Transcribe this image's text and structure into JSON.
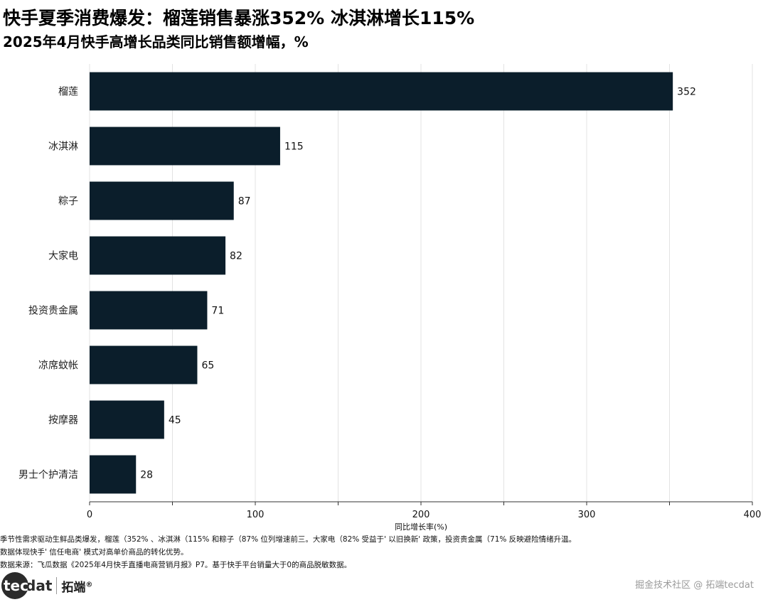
{
  "title": "快手夏季消费爆发：榴莲销售暴涨352% 冰淇淋增长115%",
  "subtitle": "2025年4月快手高增长品类同比销售额增幅，%",
  "chart_data": {
    "type": "bar",
    "orientation": "horizontal",
    "categories": [
      "榴莲",
      "冰淇淋",
      "粽子",
      "大家电",
      "投资贵金属",
      "凉席蚊帐",
      "按摩器",
      "男士个护清洁"
    ],
    "values": [
      352,
      115,
      87,
      82,
      71,
      65,
      45,
      28
    ],
    "data_labels": [
      "352",
      "115",
      "87",
      "82",
      "71",
      "65",
      "45",
      "28"
    ],
    "xlabel": "同比增长率(%)",
    "xlim": [
      0,
      400
    ],
    "x_ticks": [
      "0",
      "100",
      "200",
      "300",
      "400"
    ],
    "bar_color": "#0b1e2b",
    "grid": "vertical"
  },
  "notes": [
    "季节性需求驱动生鲜品类爆发，榴莲（352% 、冰淇淋（115% 和粽子（87% 位列增速前三。大家电（82% 受益于' 以旧换新' 政策，投资贵金属（71% 反映避险情绪升温。",
    "数据体现快手' 信任电商' 模式对高单价商品的转化优势。",
    "数据来源：飞瓜数据《2025年4月快手直播电商营销月报》P7。基于快手平台销量大于0的商品脱敏数据。"
  ],
  "brand": {
    "logo_badge": "tec",
    "logo_rest": "dat",
    "logo_cn": "拓端",
    "logo_mark": "®"
  },
  "watermark": "掘金技术社区 @ 拓端tecdat"
}
